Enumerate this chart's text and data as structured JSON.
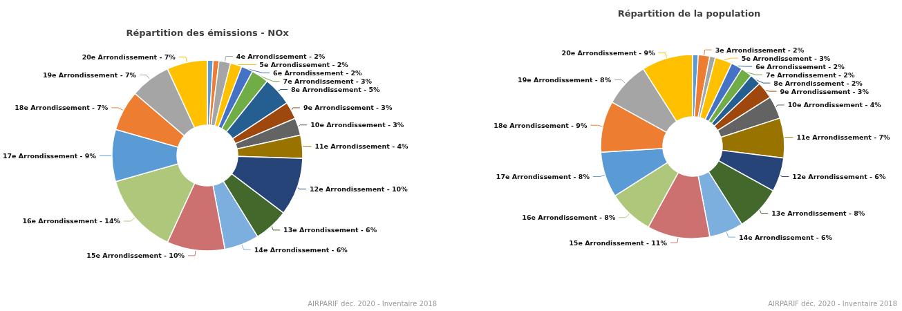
{
  "chart_data": [
    {
      "type": "donut",
      "title": "Répartition des émissions - NOx",
      "categories": [
        null,
        null,
        "4e Arrondissement - 2%",
        "5e Arrondissement - 2%",
        "6e Arrondissement - 2%",
        "7e Arrondissement - 3%",
        "8e Arrondissement - 5%",
        "9e Arrondissement - 3%",
        "10e Arrondissement - 3%",
        "11e Arrondissement - 4%",
        "12e Arrondissement - 10%",
        "13e Arrondissement - 6%",
        "14e Arrondissement - 6%",
        "15e Arrondissement - 10%",
        "16e Arrondissement - 14%",
        "17e Arrondissement - 9%",
        "18e Arrondissement - 7%",
        "19e Arrondissement - 7%",
        "20e Arrondissement - 7%"
      ],
      "values": [
        1,
        1,
        2,
        2,
        2,
        3,
        5,
        3,
        3,
        4,
        10,
        6,
        6,
        10,
        14,
        9,
        7,
        7,
        7
      ],
      "colors": [
        "#5b9bd5",
        "#ed7d31",
        "#a5a5a5",
        "#ffc000",
        "#4472c4",
        "#70ad47",
        "#255e91",
        "#9e480e",
        "#636363",
        "#997300",
        "#264478",
        "#43682b",
        "#7cafdd",
        "#cc7070",
        "#aec77a",
        "#5b9bd5",
        "#ed7d31",
        "#a5a5a5",
        "#ffc000"
      ],
      "annotations": [
        "AIRPARIF déc. 2020 - Inventaire 2018"
      ]
    },
    {
      "type": "donut",
      "title": "Répartition de la population",
      "categories": [
        null,
        "3e Arrondissement - 2%",
        null,
        "5e Arrondissement - 3%",
        "6e Arrondissement - 2%",
        "7e Arrondissement - 2%",
        "8e Arrondissement - 2%",
        "9e Arrondissement - 3%",
        "10e Arrondissement - 4%",
        "11e Arrondissement - 7%",
        "12e Arrondissement - 6%",
        "13e Arrondissement - 8%",
        "14e Arrondissement - 6%",
        "15e Arrondissement - 11%",
        "16e Arrondissement - 8%",
        "17e Arrondissement - 8%",
        "18e Arrondissement - 9%",
        "19e Arrondissement - 8%",
        "20e Arrondissement - 9%"
      ],
      "values": [
        1,
        2,
        1,
        3,
        2,
        2,
        2,
        3,
        4,
        7,
        6,
        8,
        6,
        11,
        8,
        8,
        9,
        8,
        9
      ],
      "colors": [
        "#5b9bd5",
        "#ed7d31",
        "#a5a5a5",
        "#ffc000",
        "#4472c4",
        "#70ad47",
        "#255e91",
        "#9e480e",
        "#636363",
        "#997300",
        "#264478",
        "#43682b",
        "#7cafdd",
        "#cc7070",
        "#aec77a",
        "#5b9bd5",
        "#ed7d31",
        "#a5a5a5",
        "#ffc000"
      ],
      "annotations": [
        "AIRPARIF déc. 2020 - Inventaire 2018"
      ]
    }
  ]
}
